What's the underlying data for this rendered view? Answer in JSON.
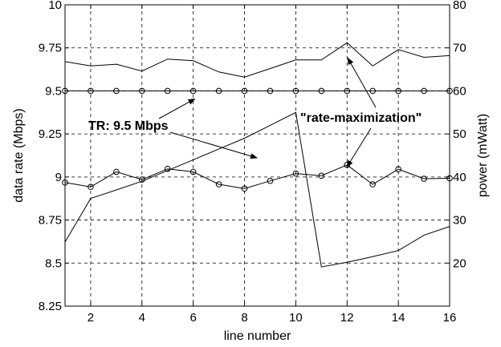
{
  "chart_data": {
    "type": "line",
    "xlabel": "line number",
    "ylabel_left": "data rate (Mbps)",
    "ylabel_right": "power (mWatt)",
    "xlim": [
      1,
      16
    ],
    "ylim_left": [
      8.25,
      10
    ],
    "ylim_right": [
      10,
      80
    ],
    "grid": true,
    "x_ticks": [
      "2",
      "4",
      "6",
      "8",
      "10",
      "12",
      "14",
      "16"
    ],
    "y_ticks_left": [
      "8.25",
      "8.5",
      "8.75",
      "9",
      "9.25",
      "9.5",
      "9.75",
      "10"
    ],
    "y_ticks_right": [
      "20",
      "30",
      "40",
      "50",
      "60",
      "70",
      "80"
    ],
    "x": [
      1,
      2,
      3,
      4,
      5,
      6,
      7,
      8,
      9,
      10,
      11,
      12,
      13,
      14,
      15,
      16
    ],
    "series": [
      {
        "axis": "left",
        "marker": "circle",
        "values": [
          9.5,
          9.5,
          9.5,
          9.5,
          9.5,
          9.5,
          9.5,
          9.5,
          9.5,
          9.5,
          9.5,
          9.5,
          9.5,
          9.5,
          9.5,
          9.5
        ]
      },
      {
        "axis": "left",
        "marker": "none",
        "values": [
          9.67,
          9.645,
          9.655,
          9.615,
          9.685,
          9.675,
          9.61,
          9.58,
          9.63,
          9.68,
          9.68,
          9.78,
          9.645,
          9.74,
          9.695,
          9.705
        ]
      },
      {
        "axis": "right",
        "marker": "circle",
        "values": [
          38.7,
          37.7,
          41.2,
          39.4,
          41.9,
          41.2,
          38.3,
          37.3,
          39.1,
          40.8,
          40.3,
          42.8,
          38.3,
          41.8,
          39.6,
          39.7
        ]
      },
      {
        "axis": "right",
        "marker": "none",
        "values": [
          24.9,
          35.0,
          37.0,
          39.0,
          41.5,
          44.0,
          46.5,
          49.0,
          52.0,
          55.0,
          19.1,
          20.2,
          21.5,
          22.9,
          26.5,
          28.5
        ]
      }
    ],
    "annotations": [
      {
        "text": "TR: 9.5 Mbps",
        "points_to": [
          [
            7,
            9.5
          ],
          [
            8.8,
            9.125
          ]
        ]
      },
      {
        "text": "\"rate-maximization\"",
        "points_to": [
          [
            11.9,
            9.71
          ],
          [
            11.9,
            9.03
          ]
        ]
      }
    ]
  }
}
